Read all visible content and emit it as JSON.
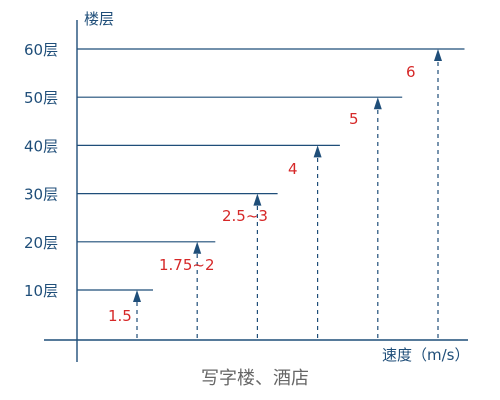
{
  "chart_data": {
    "type": "bar",
    "title": "",
    "ylabel": "楼层",
    "xlabel": "速度（m/s）",
    "caption": "写字楼、酒店",
    "y_ticks": [
      "10层",
      "20层",
      "30层",
      "40层",
      "50层",
      "60层"
    ],
    "categories": [
      "10层",
      "20层",
      "30层",
      "40层",
      "50层",
      "60层"
    ],
    "values": [
      1.5,
      1.875,
      2.75,
      4,
      5,
      6
    ],
    "value_labels": [
      "1.5",
      "1.75~2",
      "2.5~3",
      "4",
      "5",
      "6"
    ],
    "ylim": [
      0,
      60
    ],
    "grid": false,
    "colors": {
      "axis": "#1f4e79",
      "label": "#1f4e79",
      "value": "#d62828",
      "caption": "#666666"
    }
  }
}
